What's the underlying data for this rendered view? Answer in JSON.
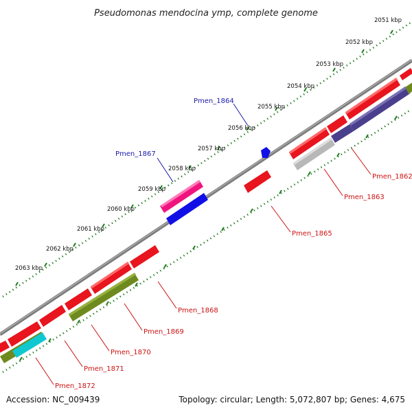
{
  "title": "Pseudomonas mendocina ymp, complete genome",
  "footer": {
    "accession": "Accession: NC_009439",
    "summary": "Topology: circular; Length: 5,072,807 bp; Genes: 4,675"
  },
  "scale_labels": [
    "2051 kbp",
    "2052 kbp",
    "2053 kbp",
    "2054 kbp",
    "2055 kbp",
    "2056 kbp",
    "2057 kbp",
    "2058 kbp",
    "2059 kbp",
    "2060 kbp",
    "2061 kbp",
    "2062 kbp",
    "2063 kbp"
  ],
  "gene_labels": [
    {
      "id": "Pmen_1864",
      "color": "#1a1aa8"
    },
    {
      "id": "Pmen_1867",
      "color": "#1a1aa8"
    },
    {
      "id": "Pmen_1862",
      "color": "#cc1111"
    },
    {
      "id": "Pmen_1863",
      "color": "#cc1111"
    },
    {
      "id": "Pmen_1865",
      "color": "#cc1111"
    },
    {
      "id": "Pmen_1868",
      "color": "#cc1111"
    },
    {
      "id": "Pmen_1869",
      "color": "#cc1111"
    },
    {
      "id": "Pmen_1870",
      "color": "#cc1111"
    },
    {
      "id": "Pmen_1871",
      "color": "#cc1111"
    },
    {
      "id": "Pmen_1872",
      "color": "#cc1111"
    }
  ],
  "feature_colors": {
    "cds": "#e8141e",
    "rrna": "#f0147e",
    "trna": "#1010e6",
    "cog_purple": "#4a3f8c",
    "cog_gray": "#b8b8b8",
    "cog_olive": "#6e8a1e",
    "cog_cyan": "#10c8d0",
    "backbone": "#888888",
    "tick": "#1f7a1f"
  }
}
